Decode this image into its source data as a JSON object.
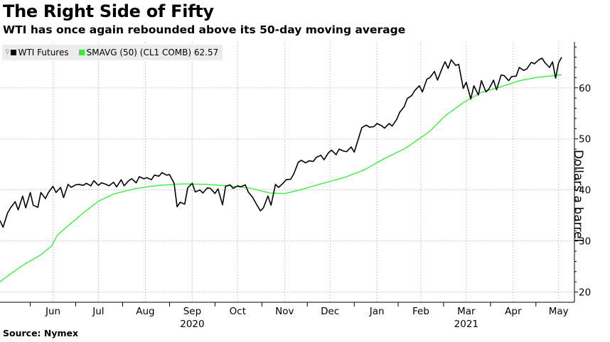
{
  "title": "The Right Side of Fifty",
  "subtitle": "WTI has once again rebounded above its 50-day moving average",
  "source": "Source: Nymex",
  "chart_data": {
    "type": "line",
    "ylabel": "Dollars a barrel",
    "ylim": [
      18,
      69
    ],
    "yticks": [
      20,
      30,
      40,
      50,
      60
    ],
    "x_start": "2020-05-12",
    "x_end": "2021-05-18",
    "xticks": [
      {
        "label": "Jun",
        "date": "2020-06-16"
      },
      {
        "label": "Jul",
        "date": "2020-07-16"
      },
      {
        "label": "Aug",
        "date": "2020-08-16"
      },
      {
        "label": "Sep",
        "date": "2020-09-16"
      },
      {
        "label": "Oct",
        "date": "2020-10-16"
      },
      {
        "label": "Nov",
        "date": "2020-11-16"
      },
      {
        "label": "Dec",
        "date": "2020-12-16"
      },
      {
        "label": "Jan",
        "date": "2021-01-16"
      },
      {
        "label": "Feb",
        "date": "2021-02-14"
      },
      {
        "label": "Mar",
        "date": "2021-03-16"
      },
      {
        "label": "Apr",
        "date": "2021-04-16"
      },
      {
        "label": "May",
        "date": "2021-05-16"
      }
    ],
    "year_labels": [
      {
        "label": "2020",
        "date": "2020-09-16"
      },
      {
        "label": "2021",
        "date": "2021-03-16"
      }
    ],
    "grid": true,
    "legend_position": "top-left",
    "series": [
      {
        "name": "WTI Futures",
        "color": "#000000",
        "points": [
          [
            "2020-05-12",
            34.0
          ],
          [
            "2020-05-14",
            32.7
          ],
          [
            "2020-05-17",
            35.5
          ],
          [
            "2020-05-19",
            36.5
          ],
          [
            "2020-05-22",
            37.7
          ],
          [
            "2020-05-24",
            36.1
          ],
          [
            "2020-05-27",
            38.8
          ],
          [
            "2020-05-29",
            36.5
          ],
          [
            "2020-06-01",
            39.5
          ],
          [
            "2020-06-03",
            37.0
          ],
          [
            "2020-06-06",
            36.6
          ],
          [
            "2020-06-08",
            39.5
          ],
          [
            "2020-06-11",
            38.3
          ],
          [
            "2020-06-13",
            39.5
          ],
          [
            "2020-06-16",
            40.7
          ],
          [
            "2020-06-18",
            39.5
          ],
          [
            "2020-06-21",
            40.5
          ],
          [
            "2020-06-23",
            38.5
          ],
          [
            "2020-06-26",
            41.1
          ],
          [
            "2020-06-28",
            40.5
          ],
          [
            "2020-07-01",
            41.0
          ],
          [
            "2020-07-03",
            41.1
          ],
          [
            "2020-07-06",
            40.9
          ],
          [
            "2020-07-08",
            41.3
          ],
          [
            "2020-07-11",
            40.8
          ],
          [
            "2020-07-13",
            41.8
          ],
          [
            "2020-07-16",
            40.9
          ],
          [
            "2020-07-18",
            41.4
          ],
          [
            "2020-07-21",
            41.1
          ],
          [
            "2020-07-23",
            40.8
          ],
          [
            "2020-07-26",
            41.5
          ],
          [
            "2020-07-28",
            40.6
          ],
          [
            "2020-07-31",
            42.0
          ],
          [
            "2020-08-02",
            40.8
          ],
          [
            "2020-08-05",
            41.8
          ],
          [
            "2020-08-07",
            42.2
          ],
          [
            "2020-08-10",
            41.4
          ],
          [
            "2020-08-12",
            42.6
          ],
          [
            "2020-08-15",
            42.2
          ],
          [
            "2020-08-17",
            42.4
          ],
          [
            "2020-08-20",
            42.0
          ],
          [
            "2020-08-22",
            42.9
          ],
          [
            "2020-08-25",
            42.7
          ],
          [
            "2020-08-27",
            43.4
          ],
          [
            "2020-08-30",
            42.9
          ],
          [
            "2020-09-01",
            43.0
          ],
          [
            "2020-09-04",
            41.3
          ],
          [
            "2020-09-06",
            36.7
          ],
          [
            "2020-09-08",
            37.6
          ],
          [
            "2020-09-11",
            37.2
          ],
          [
            "2020-09-13",
            40.4
          ],
          [
            "2020-09-16",
            41.3
          ],
          [
            "2020-09-18",
            39.6
          ],
          [
            "2020-09-21",
            40.0
          ],
          [
            "2020-09-23",
            39.4
          ],
          [
            "2020-09-26",
            40.4
          ],
          [
            "2020-09-28",
            40.3
          ],
          [
            "2020-10-01",
            39.3
          ],
          [
            "2020-10-03",
            40.2
          ],
          [
            "2020-10-06",
            37.1
          ],
          [
            "2020-10-08",
            40.7
          ],
          [
            "2020-10-11",
            41.0
          ],
          [
            "2020-10-13",
            40.3
          ],
          [
            "2020-10-16",
            40.8
          ],
          [
            "2020-10-18",
            40.6
          ],
          [
            "2020-10-21",
            41.0
          ],
          [
            "2020-10-23",
            39.6
          ],
          [
            "2020-10-26",
            38.5
          ],
          [
            "2020-10-28",
            37.4
          ],
          [
            "2020-10-31",
            35.9
          ],
          [
            "2020-11-02",
            36.5
          ],
          [
            "2020-11-05",
            38.8
          ],
          [
            "2020-11-07",
            37.0
          ],
          [
            "2020-11-10",
            41.1
          ],
          [
            "2020-11-12",
            40.5
          ],
          [
            "2020-11-15",
            41.3
          ],
          [
            "2020-11-17",
            42.0
          ],
          [
            "2020-11-20",
            42.1
          ],
          [
            "2020-11-22",
            43.1
          ],
          [
            "2020-11-25",
            45.4
          ],
          [
            "2020-11-27",
            45.8
          ],
          [
            "2020-11-30",
            45.3
          ],
          [
            "2020-12-02",
            45.7
          ],
          [
            "2020-12-05",
            45.6
          ],
          [
            "2020-12-07",
            46.4
          ],
          [
            "2020-12-10",
            46.8
          ],
          [
            "2020-12-12",
            45.9
          ],
          [
            "2020-12-15",
            47.3
          ],
          [
            "2020-12-17",
            47.8
          ],
          [
            "2020-12-20",
            46.9
          ],
          [
            "2020-12-22",
            48.0
          ],
          [
            "2020-12-25",
            47.6
          ],
          [
            "2020-12-27",
            47.5
          ],
          [
            "2020-12-30",
            48.4
          ],
          [
            "2021-01-01",
            47.4
          ],
          [
            "2021-01-04",
            50.3
          ],
          [
            "2021-01-06",
            52.2
          ],
          [
            "2021-01-09",
            52.7
          ],
          [
            "2021-01-11",
            52.3
          ],
          [
            "2021-01-14",
            52.4
          ],
          [
            "2021-01-16",
            53.0
          ],
          [
            "2021-01-19",
            52.6
          ],
          [
            "2021-01-21",
            52.1
          ],
          [
            "2021-01-24",
            53.0
          ],
          [
            "2021-01-26",
            52.5
          ],
          [
            "2021-01-29",
            53.8
          ],
          [
            "2021-01-31",
            55.2
          ],
          [
            "2021-02-03",
            56.3
          ],
          [
            "2021-02-05",
            57.9
          ],
          [
            "2021-02-08",
            58.5
          ],
          [
            "2021-02-10",
            59.5
          ],
          [
            "2021-02-13",
            60.4
          ],
          [
            "2021-02-15",
            59.2
          ],
          [
            "2021-02-18",
            61.7
          ],
          [
            "2021-02-20",
            62.0
          ],
          [
            "2021-02-23",
            63.2
          ],
          [
            "2021-02-25",
            61.5
          ],
          [
            "2021-02-28",
            63.8
          ],
          [
            "2021-03-02",
            65.1
          ],
          [
            "2021-03-04",
            63.8
          ],
          [
            "2021-03-06",
            65.5
          ],
          [
            "2021-03-09",
            64.4
          ],
          [
            "2021-03-11",
            64.6
          ],
          [
            "2021-03-14",
            59.9
          ],
          [
            "2021-03-16",
            61.1
          ],
          [
            "2021-03-19",
            57.8
          ],
          [
            "2021-03-21",
            60.4
          ],
          [
            "2021-03-24",
            58.6
          ],
          [
            "2021-03-26",
            61.4
          ],
          [
            "2021-03-29",
            59.2
          ],
          [
            "2021-03-31",
            59.8
          ],
          [
            "2021-04-03",
            61.5
          ],
          [
            "2021-04-05",
            59.6
          ],
          [
            "2021-04-08",
            62.5
          ],
          [
            "2021-04-10",
            62.4
          ],
          [
            "2021-04-13",
            61.4
          ],
          [
            "2021-04-15",
            62.2
          ],
          [
            "2021-04-18",
            62.3
          ],
          [
            "2021-04-20",
            64.0
          ],
          [
            "2021-04-23",
            63.4
          ],
          [
            "2021-04-25",
            63.7
          ],
          [
            "2021-04-28",
            65.0
          ],
          [
            "2021-04-30",
            64.7
          ],
          [
            "2021-05-03",
            65.5
          ],
          [
            "2021-05-05",
            65.8
          ],
          [
            "2021-05-07",
            64.9
          ],
          [
            "2021-05-10",
            64.0
          ],
          [
            "2021-05-12",
            65.1
          ],
          [
            "2021-05-14",
            61.9
          ],
          [
            "2021-05-16",
            64.9
          ],
          [
            "2021-05-18",
            66.0
          ]
        ]
      },
      {
        "name": "SMAVG (50) (CL1 COMB) 62.57",
        "color": "#33ee33",
        "points": [
          [
            "2020-05-12",
            22.0
          ],
          [
            "2020-05-19",
            23.6
          ],
          [
            "2020-05-29",
            25.6
          ],
          [
            "2020-06-08",
            27.3
          ],
          [
            "2020-06-15",
            29.0
          ],
          [
            "2020-06-19",
            31.2
          ],
          [
            "2020-06-26",
            33.0
          ],
          [
            "2020-07-06",
            35.5
          ],
          [
            "2020-07-16",
            37.8
          ],
          [
            "2020-07-26",
            39.2
          ],
          [
            "2020-08-10",
            40.3
          ],
          [
            "2020-08-25",
            40.9
          ],
          [
            "2020-09-10",
            41.2
          ],
          [
            "2020-09-25",
            41.1
          ],
          [
            "2020-10-10",
            40.8
          ],
          [
            "2020-10-25",
            40.3
          ],
          [
            "2020-11-06",
            39.4
          ],
          [
            "2020-11-16",
            39.3
          ],
          [
            "2020-11-26",
            40.0
          ],
          [
            "2020-12-10",
            41.2
          ],
          [
            "2020-12-26",
            42.5
          ],
          [
            "2021-01-08",
            44.0
          ],
          [
            "2021-01-20",
            46.0
          ],
          [
            "2021-02-04",
            48.2
          ],
          [
            "2021-02-20",
            51.5
          ],
          [
            "2021-03-02",
            54.5
          ],
          [
            "2021-03-14",
            57.1
          ],
          [
            "2021-03-26",
            59.1
          ],
          [
            "2021-04-08",
            60.2
          ],
          [
            "2021-04-20",
            61.4
          ],
          [
            "2021-05-01",
            62.0
          ],
          [
            "2021-05-10",
            62.3
          ],
          [
            "2021-05-18",
            62.57
          ]
        ]
      }
    ]
  }
}
